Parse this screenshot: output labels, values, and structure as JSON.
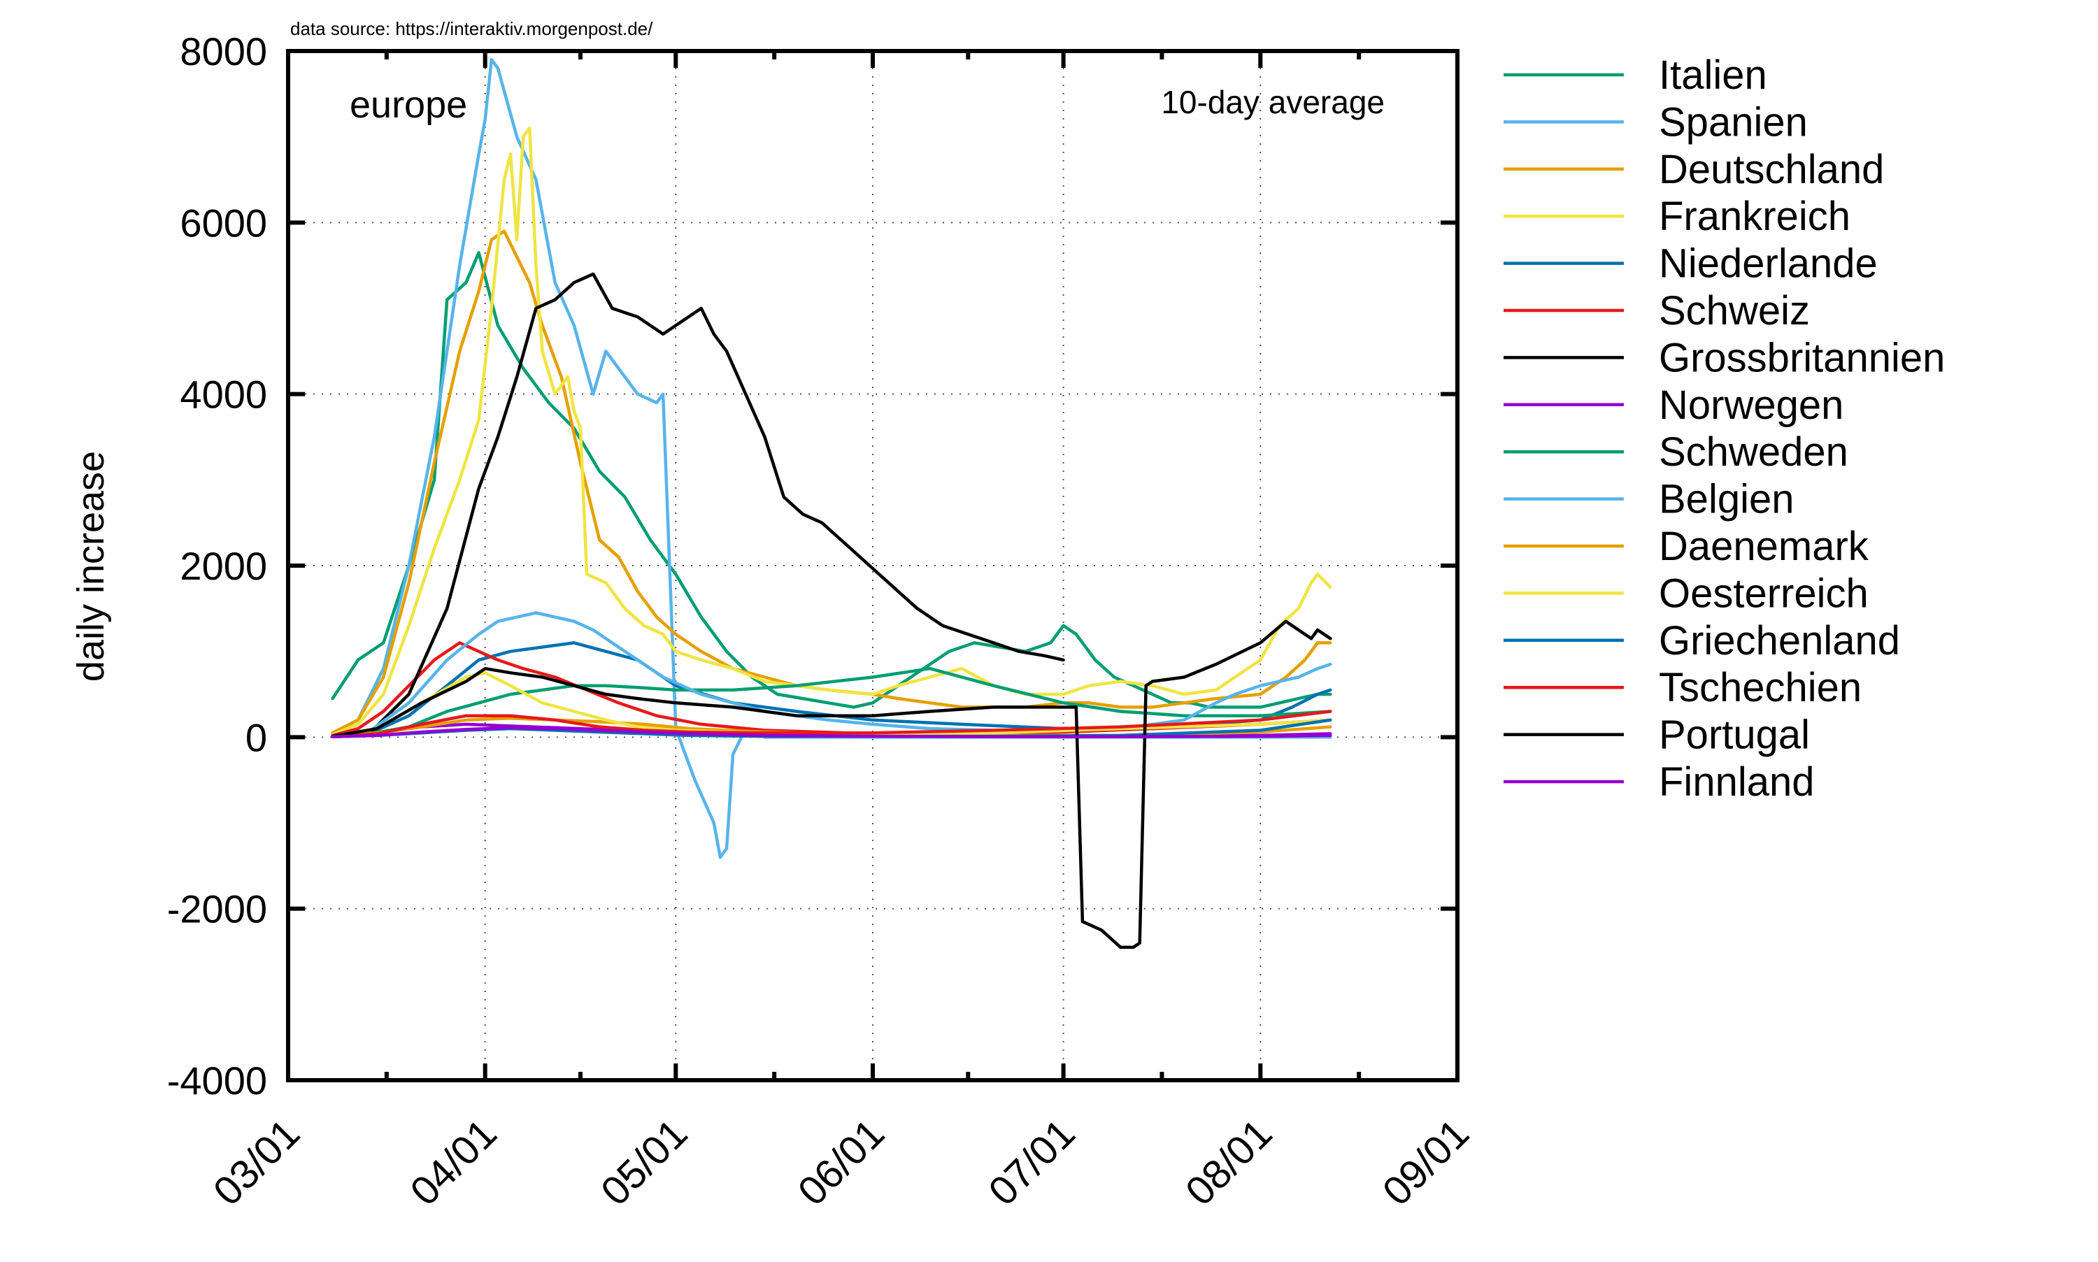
{
  "chart_data": {
    "type": "line",
    "source_note": "data source: https://interaktiv.morgenpost.de/",
    "region_label": "europe",
    "average_label": "10-day average",
    "ylabel": "daily increase",
    "xlabel": "",
    "ylim": [
      -4000,
      8000
    ],
    "xlim": [
      "03/01",
      "09/01"
    ],
    "grid": true,
    "legend_position": "right-outside",
    "y_ticks": [
      "8000",
      "6000",
      "4000",
      "2000",
      "0",
      "-2000",
      "-4000"
    ],
    "x_ticks": [
      "03/01",
      "04/01",
      "05/01",
      "06/01",
      "07/01",
      "08/01",
      "09/01"
    ],
    "series": [
      {
        "name": "Italien",
        "color": "#009e73",
        "x": [
          "03/08",
          "03/12",
          "03/16",
          "03/20",
          "03/24",
          "03/26",
          "03/29",
          "03/31",
          "04/03",
          "04/07",
          "04/11",
          "04/15",
          "04/19",
          "04/23",
          "04/27",
          "05/01",
          "05/05",
          "05/09",
          "05/13",
          "05/17",
          "05/21",
          "05/25",
          "05/29",
          "06/01",
          "06/05",
          "06/09",
          "06/13",
          "06/17",
          "06/21",
          "06/25",
          "06/29",
          "07/01",
          "07/03",
          "07/06",
          "07/09",
          "07/12",
          "07/15",
          "07/18",
          "07/21",
          "07/24",
          "07/28",
          "08/01",
          "08/04",
          "08/07",
          "08/10",
          "08/12"
        ],
        "values": [
          450,
          900,
          1100,
          2000,
          3000,
          5100,
          5300,
          5650,
          4800,
          4300,
          3900,
          3600,
          3100,
          2800,
          2300,
          1900,
          1400,
          1000,
          700,
          500,
          450,
          400,
          350,
          400,
          600,
          800,
          1000,
          1100,
          1050,
          1000,
          1100,
          1300,
          1200,
          900,
          700,
          600,
          500,
          400,
          400,
          350,
          350,
          350,
          400,
          450,
          500,
          500
        ]
      },
      {
        "name": "Spanien",
        "color": "#56b4e9",
        "x": [
          "03/08",
          "03/12",
          "03/16",
          "03/20",
          "03/24",
          "03/28",
          "03/31",
          "04/01",
          "04/02",
          "04/03",
          "04/06",
          "04/09",
          "04/12",
          "04/15",
          "04/18",
          "04/20",
          "04/22",
          "04/25",
          "04/28",
          "04/29",
          "05/01",
          "05/04",
          "05/07",
          "05/08",
          "05/09",
          "05/10",
          "05/12",
          "05/15",
          "05/20",
          "05/25",
          "06/01",
          "06/05",
          "06/10",
          "06/15",
          "06/20",
          "06/25",
          "07/01",
          "07/05",
          "07/10",
          "07/15",
          "07/20",
          "07/25",
          "07/28",
          "08/01",
          "08/04",
          "08/07",
          "08/10",
          "08/11",
          "08/12"
        ],
        "values": [
          50,
          200,
          800,
          2000,
          3500,
          5500,
          6800,
          7200,
          7900,
          7800,
          7000,
          6500,
          5300,
          4800,
          4000,
          4500,
          4300,
          4000,
          3900,
          4000,
          100,
          -500,
          -1000,
          -1400,
          -1300,
          -200,
          100,
          0,
          0,
          0,
          0,
          0,
          0,
          0,
          0,
          0,
          0,
          0,
          0,
          0,
          0,
          0,
          0,
          0,
          0,
          0,
          0,
          0,
          0
        ]
      },
      {
        "name": "Deutschland",
        "color": "#e69f00",
        "x": [
          "03/08",
          "03/12",
          "03/16",
          "03/20",
          "03/24",
          "03/28",
          "03/31",
          "04/02",
          "04/04",
          "04/06",
          "04/08",
          "04/10",
          "04/13",
          "04/16",
          "04/19",
          "04/22",
          "04/25",
          "04/28",
          "05/01",
          "05/05",
          "05/10",
          "05/15",
          "05/20",
          "05/25",
          "06/01",
          "06/05",
          "06/10",
          "06/15",
          "06/20",
          "06/25",
          "07/01",
          "07/05",
          "07/10",
          "07/15",
          "07/20",
          "07/25",
          "08/01",
          "08/05",
          "08/08",
          "08/10",
          "08/12"
        ],
        "values": [
          50,
          200,
          700,
          1800,
          3200,
          4500,
          5200,
          5800,
          5900,
          5600,
          5300,
          4800,
          4200,
          3200,
          2300,
          2100,
          1700,
          1400,
          1200,
          1000,
          800,
          700,
          600,
          550,
          500,
          450,
          400,
          350,
          350,
          350,
          400,
          400,
          350,
          350,
          400,
          450,
          500,
          700,
          900,
          1100,
          1100
        ]
      },
      {
        "name": "Frankreich",
        "color": "#f0e442",
        "x": [
          "03/08",
          "03/12",
          "03/16",
          "03/20",
          "03/24",
          "03/28",
          "03/31",
          "04/02",
          "04/04",
          "04/05",
          "04/06",
          "04/07",
          "04/08",
          "04/09",
          "04/10",
          "04/12",
          "04/14",
          "04/15",
          "04/16",
          "04/17",
          "04/20",
          "04/23",
          "04/26",
          "04/29",
          "05/01",
          "05/05",
          "05/10",
          "05/15",
          "05/20",
          "05/25",
          "06/01",
          "06/05",
          "06/10",
          "06/15",
          "06/20",
          "06/25",
          "07/01",
          "07/05",
          "07/10",
          "07/15",
          "07/20",
          "07/25",
          "08/01",
          "08/04",
          "08/07",
          "08/09",
          "08/10",
          "08/12"
        ],
        "values": [
          30,
          150,
          500,
          1300,
          2200,
          3000,
          3700,
          5000,
          6500,
          6800,
          5800,
          7000,
          7100,
          5500,
          4500,
          4000,
          4200,
          3800,
          3600,
          1900,
          1800,
          1500,
          1300,
          1200,
          1000,
          900,
          800,
          650,
          600,
          550,
          500,
          600,
          700,
          800,
          600,
          500,
          500,
          600,
          650,
          600,
          500,
          550,
          900,
          1300,
          1500,
          1800,
          1900,
          1750
        ]
      },
      {
        "name": "Niederlande",
        "color": "#0072b2",
        "x": [
          "03/08",
          "03/14",
          "03/20",
          "03/26",
          "03/31",
          "04/05",
          "04/10",
          "04/15",
          "04/20",
          "04/25",
          "05/01",
          "05/10",
          "05/20",
          "06/01",
          "06/15",
          "07/01",
          "07/15",
          "08/01",
          "08/06",
          "08/10",
          "08/12"
        ],
        "values": [
          10,
          50,
          250,
          600,
          900,
          1000,
          1050,
          1100,
          1000,
          900,
          600,
          400,
          300,
          200,
          150,
          100,
          100,
          200,
          350,
          500,
          550
        ]
      },
      {
        "name": "Schweiz",
        "color": "#e41a1c",
        "x": [
          "03/08",
          "03/12",
          "03/16",
          "03/20",
          "03/24",
          "03/28",
          "03/31",
          "04/03",
          "04/07",
          "04/12",
          "04/17",
          "04/22",
          "04/28",
          "05/05",
          "05/15",
          "06/01",
          "06/15",
          "07/01",
          "07/15",
          "08/01",
          "08/12"
        ],
        "values": [
          20,
          100,
          300,
          600,
          900,
          1100,
          1000,
          900,
          800,
          700,
          550,
          400,
          250,
          150,
          80,
          40,
          30,
          60,
          100,
          150,
          200
        ]
      },
      {
        "name": "Grossbritannien",
        "color": "#000000",
        "x": [
          "03/08",
          "03/14",
          "03/20",
          "03/26",
          "03/31",
          "04/03",
          "04/06",
          "04/09",
          "04/12",
          "04/15",
          "04/18",
          "04/21",
          "04/25",
          "04/29",
          "05/01",
          "05/03",
          "05/05",
          "05/07",
          "05/09",
          "05/12",
          "05/15",
          "05/18",
          "05/21",
          "05/24",
          "05/27",
          "05/30",
          "06/02",
          "06/05",
          "06/08",
          "06/12",
          "06/16",
          "06/20",
          "06/24",
          "06/28",
          "07/01"
        ],
        "values": [
          10,
          60,
          500,
          1500,
          2900,
          3500,
          4200,
          5000,
          5100,
          5300,
          5400,
          5000,
          4900,
          4700,
          4800,
          4900,
          5000,
          4700,
          4500,
          4000,
          3500,
          2800,
          2600,
          2500,
          2300,
          2100,
          1900,
          1700,
          1500,
          1300,
          1200,
          1100,
          1000,
          950,
          900
        ]
      },
      {
        "name": "Norwegen",
        "color": "#9400d3",
        "x": [
          "03/08",
          "03/15",
          "03/22",
          "03/29",
          "04/05",
          "04/12",
          "04/19",
          "04/26",
          "05/03",
          "05/15",
          "06/01",
          "06/20",
          "07/10",
          "08/01",
          "08/12"
        ],
        "values": [
          10,
          50,
          120,
          150,
          130,
          110,
          90,
          70,
          50,
          30,
          15,
          10,
          10,
          20,
          40
        ]
      },
      {
        "name": "Schweden",
        "color": "#009e73",
        "x": [
          "03/08",
          "03/14",
          "03/20",
          "03/26",
          "03/31",
          "04/05",
          "04/10",
          "04/15",
          "04/20",
          "04/25",
          "05/01",
          "05/10",
          "05/20",
          "06/01",
          "06/10",
          "06/20",
          "07/01",
          "07/10",
          "07/20",
          "08/01",
          "08/12"
        ],
        "values": [
          10,
          40,
          120,
          300,
          400,
          500,
          550,
          600,
          600,
          580,
          550,
          550,
          600,
          700,
          800,
          600,
          400,
          300,
          250,
          250,
          300
        ]
      },
      {
        "name": "Belgien",
        "color": "#56b4e9",
        "x": [
          "03/08",
          "03/14",
          "03/20",
          "03/26",
          "03/31",
          "04/03",
          "04/06",
          "04/09",
          "04/12",
          "04/15",
          "04/18",
          "04/21",
          "04/25",
          "04/29",
          "05/05",
          "05/10",
          "05/15",
          "05/20",
          "05/25",
          "06/01",
          "06/10",
          "06/20",
          "07/01",
          "07/10",
          "07/20",
          "07/25",
          "07/28",
          "08/01",
          "08/04",
          "08/07",
          "08/10",
          "08/12"
        ],
        "values": [
          10,
          80,
          400,
          900,
          1200,
          1350,
          1400,
          1450,
          1400,
          1350,
          1250,
          1100,
          900,
          700,
          500,
          400,
          300,
          250,
          200,
          150,
          100,
          80,
          80,
          100,
          200,
          400,
          500,
          600,
          650,
          700,
          800,
          850
        ]
      },
      {
        "name": "Daenemark",
        "color": "#e69f00",
        "x": [
          "03/08",
          "03/15",
          "03/22",
          "03/29",
          "04/05",
          "04/12",
          "04/19",
          "04/26",
          "05/03",
          "05/15",
          "06/01",
          "06/20",
          "07/10",
          "08/01",
          "08/12"
        ],
        "values": [
          10,
          50,
          120,
          200,
          220,
          200,
          180,
          150,
          100,
          60,
          30,
          20,
          20,
          60,
          120
        ]
      },
      {
        "name": "Oesterreich",
        "color": "#f0e442",
        "x": [
          "03/08",
          "03/15",
          "03/22",
          "03/29",
          "04/01",
          "04/05",
          "04/10",
          "04/15",
          "04/20",
          "04/25",
          "05/01",
          "05/15",
          "06/01",
          "06/20",
          "07/10",
          "08/01",
          "08/12"
        ],
        "values": [
          10,
          100,
          400,
          700,
          750,
          600,
          400,
          300,
          200,
          120,
          80,
          50,
          40,
          50,
          100,
          150,
          200
        ]
      },
      {
        "name": "Griechenland",
        "color": "#0072b2",
        "x": [
          "03/08",
          "03/15",
          "03/22",
          "03/29",
          "04/05",
          "04/12",
          "04/19",
          "04/26",
          "05/03",
          "05/15",
          "06/01",
          "06/20",
          "07/10",
          "08/01",
          "08/12"
        ],
        "values": [
          5,
          20,
          50,
          80,
          100,
          80,
          60,
          40,
          20,
          10,
          10,
          10,
          20,
          80,
          200
        ]
      },
      {
        "name": "Tschechien",
        "color": "#e41a1c",
        "x": [
          "03/08",
          "03/15",
          "03/22",
          "03/29",
          "04/05",
          "04/12",
          "04/19",
          "04/26",
          "05/03",
          "05/15",
          "06/01",
          "06/20",
          "07/10",
          "08/01",
          "08/12"
        ],
        "values": [
          5,
          40,
          150,
          250,
          250,
          200,
          120,
          80,
          60,
          50,
          50,
          80,
          120,
          200,
          300
        ]
      },
      {
        "name": "Portugal",
        "color": "#000000",
        "x": [
          "03/08",
          "03/15",
          "03/22",
          "03/29",
          "04/01",
          "04/05",
          "04/10",
          "04/15",
          "04/20",
          "04/25",
          "05/01",
          "05/10",
          "05/20",
          "06/01",
          "06/10",
          "06/20",
          "06/30",
          "07/03",
          "07/04",
          "07/07",
          "07/10",
          "07/12",
          "07/13",
          "07/14",
          "07/15",
          "07/20",
          "07/25",
          "08/01",
          "08/05",
          "08/09",
          "08/10",
          "08/12"
        ],
        "values": [
          10,
          100,
          400,
          650,
          800,
          750,
          700,
          600,
          500,
          450,
          400,
          350,
          250,
          250,
          300,
          350,
          350,
          350,
          -2150,
          -2250,
          -2450,
          -2450,
          -2400,
          600,
          650,
          700,
          850,
          1100,
          1350,
          1150,
          1250,
          1150
        ]
      },
      {
        "name": "Finnland",
        "color": "#9400d3",
        "x": [
          "03/08",
          "03/15",
          "03/22",
          "03/29",
          "04/05",
          "04/12",
          "04/19",
          "04/26",
          "05/03",
          "05/15",
          "06/01",
          "06/20",
          "07/10",
          "08/01",
          "08/12"
        ],
        "values": [
          5,
          20,
          60,
          90,
          110,
          100,
          80,
          60,
          40,
          20,
          10,
          5,
          5,
          10,
          20
        ]
      }
    ]
  }
}
